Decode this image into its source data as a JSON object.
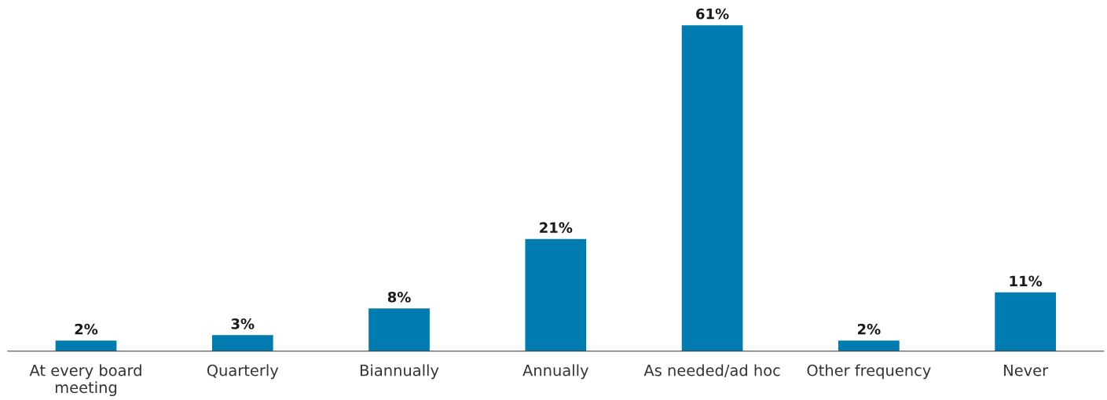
{
  "chart_data": {
    "type": "bar",
    "categories": [
      "At every board meeting",
      "Quarterly",
      "Biannually",
      "Annually",
      "As needed/ad hoc",
      "Other frequency",
      "Never"
    ],
    "values": [
      2,
      3,
      8,
      21,
      61,
      2,
      11
    ],
    "value_labels": [
      "2%",
      "3%",
      "8%",
      "21%",
      "61%",
      "2%",
      "11%"
    ],
    "color": "#007cb0",
    "grid": false,
    "legend": false,
    "tick_labels": "x"
  }
}
